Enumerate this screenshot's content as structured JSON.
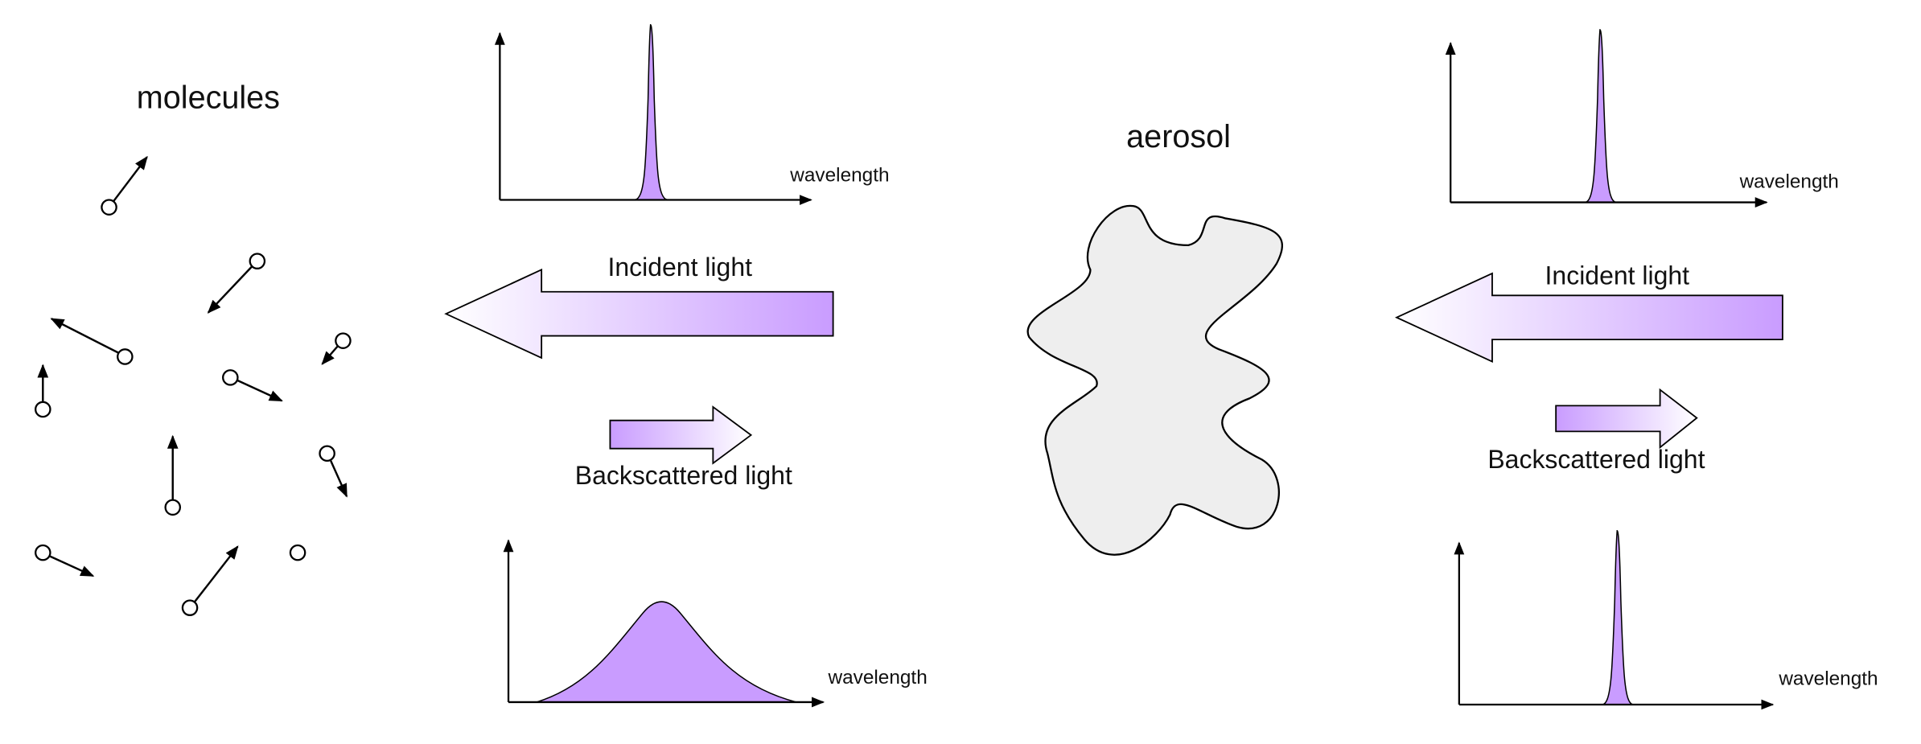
{
  "left": {
    "label": "molecules",
    "incident": "Incident light",
    "backscattered": "Backscattered light",
    "top_plot": {
      "axis_label": "wavelength"
    },
    "bottom_plot": {
      "axis_label": "wavelength"
    }
  },
  "right": {
    "label": "aerosol",
    "incident": "Incident light",
    "backscattered": "Backscattered light",
    "top_plot": {
      "axis_label": "wavelength"
    },
    "bottom_plot": {
      "axis_label": "wavelength"
    }
  }
}
